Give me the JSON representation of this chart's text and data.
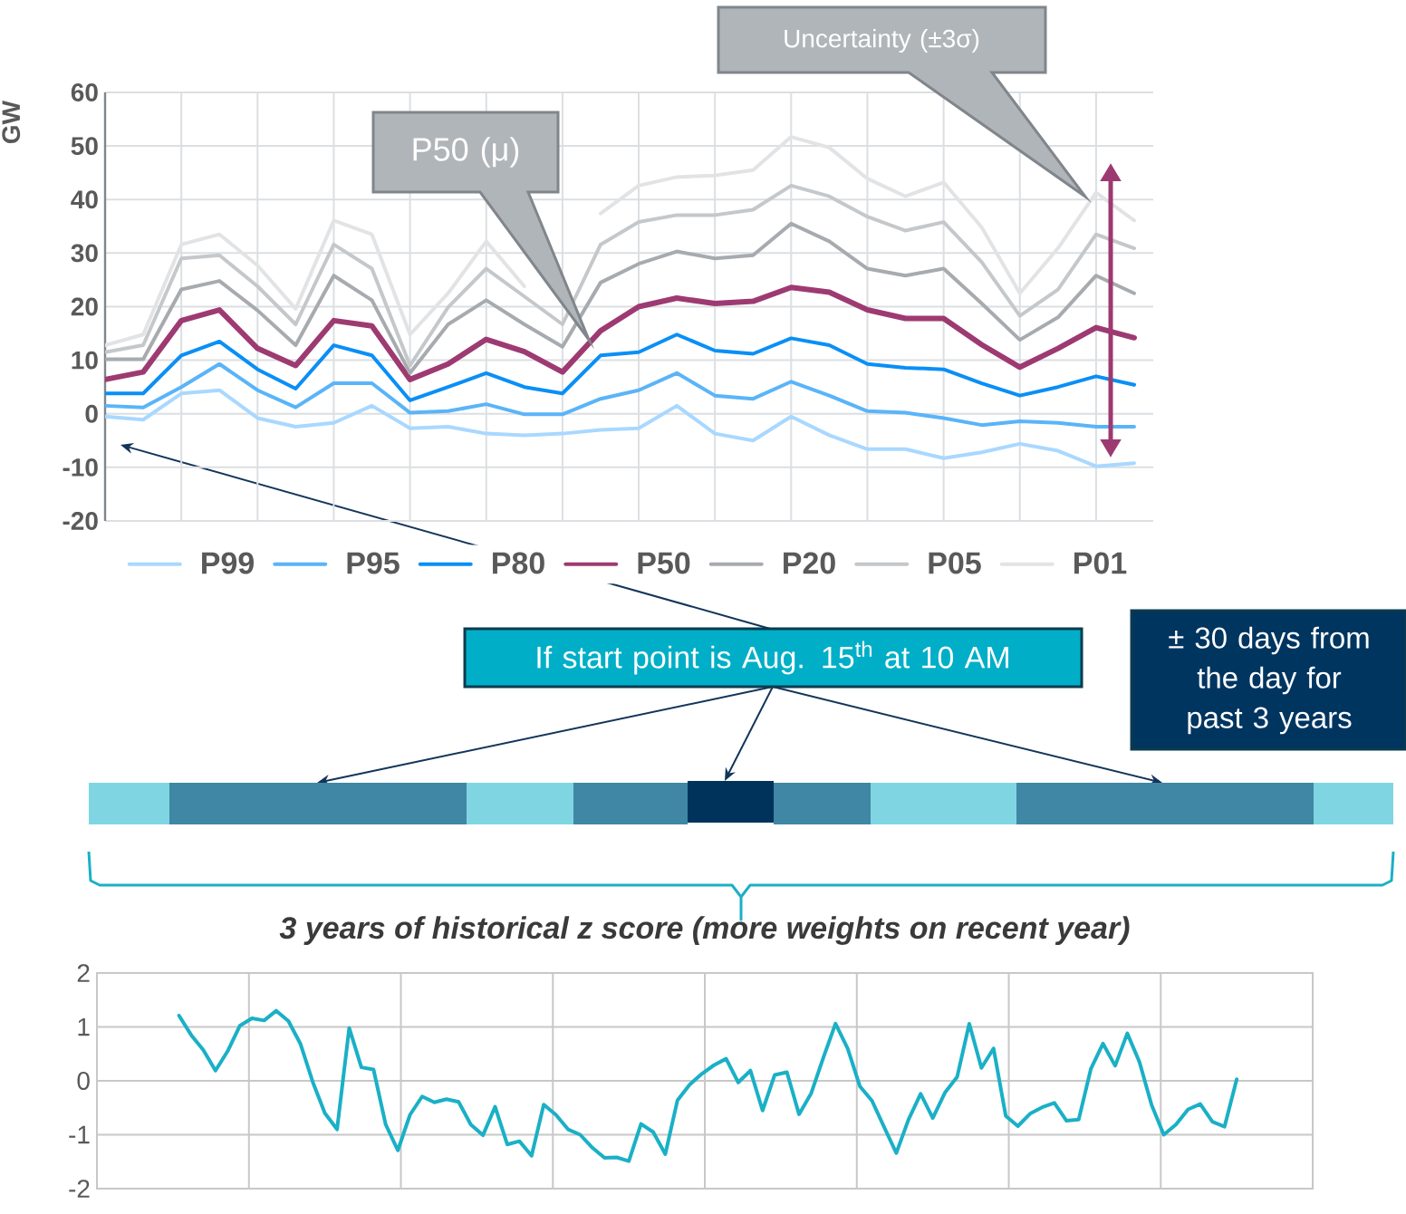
{
  "chart_data": [
    {
      "type": "line",
      "ylabel": "GW",
      "categories": [
        null,
        null,
        null,
        null,
        null,
        null,
        null,
        null,
        null,
        null,
        null,
        null,
        null,
        null,
        null,
        null,
        null,
        null,
        null,
        null,
        null,
        null,
        null,
        null,
        null,
        null,
        null,
        null
      ],
      "ylim": [
        -20,
        60
      ],
      "yticks": [
        -20,
        -10,
        0,
        10,
        20,
        30,
        40,
        50,
        60
      ],
      "tick_labels": "y",
      "grid": true,
      "legend": "bottom",
      "series": [
        {
          "name": "P99",
          "color": "#a9d8ff",
          "values": [
            -0.5,
            -1.1,
            3.8,
            4.4,
            -0.8,
            -2.4,
            -1.7,
            1.5,
            -2.7,
            -2.4,
            -3.7,
            -4,
            -3.7,
            -3,
            -2.7,
            1.5,
            -3.7,
            -5,
            -0.5,
            -4,
            -6.6,
            -6.6,
            -8.3,
            -7.2,
            -5.6,
            -6.9,
            -9.8,
            -9.2
          ]
        },
        {
          "name": "P95",
          "color": "#5ab4f8",
          "values": [
            1.5,
            1.2,
            5,
            9.3,
            4.4,
            1.2,
            5.7,
            5.7,
            0.2,
            0.5,
            1.8,
            -0.1,
            -0.1,
            2.8,
            4.4,
            7.6,
            3.4,
            2.8,
            6,
            3.4,
            0.5,
            0.2,
            -0.8,
            -2.1,
            -1.4,
            -1.7,
            -2.4,
            -2.4
          ]
        },
        {
          "name": "P80",
          "color": "#0a8ff5",
          "values": [
            3.8,
            3.8,
            10.9,
            13.5,
            8.3,
            4.7,
            12.8,
            10.9,
            2.5,
            5,
            7.6,
            5,
            3.8,
            10.9,
            11.5,
            14.8,
            11.8,
            11.2,
            14.1,
            12.8,
            9.3,
            8.6,
            8.3,
            5.7,
            3.4,
            5,
            7,
            5.4
          ]
        },
        {
          "name": "P50",
          "color": "#9e3a72",
          "values": [
            6.4,
            7.8,
            17.4,
            19.4,
            12.2,
            9,
            17.4,
            16.4,
            6.4,
            9.3,
            13.9,
            11.6,
            7.8,
            15.5,
            20,
            21.6,
            20.6,
            21,
            23.6,
            22.7,
            19.4,
            17.8,
            17.8,
            12.9,
            8.7,
            12.2,
            16.1,
            14.2
          ]
        },
        {
          "name": "P20",
          "color": "#a7abaf",
          "values": [
            10.2,
            10.2,
            23.2,
            24.8,
            19.3,
            12.8,
            25.8,
            21.2,
            7.6,
            16.7,
            21.2,
            16.7,
            12.5,
            24.5,
            28,
            30.3,
            29,
            29.6,
            35.5,
            32.2,
            27.1,
            25.8,
            27.1,
            20.6,
            13.8,
            18,
            25.8,
            22.5
          ]
        },
        {
          "name": "P05",
          "color": "#c5c8cb",
          "values": [
            11.5,
            12.8,
            29,
            29.6,
            23.8,
            16.7,
            31.6,
            27.1,
            9,
            19.9,
            27.1,
            21.9,
            16.7,
            31.6,
            35.8,
            37.1,
            37.1,
            38.1,
            42.6,
            40.6,
            36.8,
            34.2,
            35.8,
            28.3,
            18.3,
            23.2,
            33.5,
            30.9
          ]
        },
        {
          "name": "P01",
          "color": "#e2e3e5",
          "values": [
            12.8,
            14.8,
            31.6,
            33.5,
            27.7,
            19.6,
            36.1,
            33.5,
            14.8,
            22.5,
            32.2,
            23.8,
            null,
            37.4,
            42.6,
            44.2,
            44.5,
            45.5,
            51.7,
            49.7,
            43.9,
            40.6,
            43.2,
            34.8,
            22.5,
            30.9,
            41.3,
            36.1
          ]
        }
      ],
      "annotations": [
        "P50 (μ)",
        "Uncertainty (±3σ)",
        "If start point is Aug. 15$^{th}$ at 10 AM",
        "± 30 days from the day for past 3 years"
      ]
    },
    {
      "type": "line",
      "title": "3 years of historical z score (more weights on recent year)",
      "categories": [
        null,
        null,
        null,
        null,
        null,
        null,
        null,
        null,
        null,
        null,
        null,
        null,
        null,
        null,
        null,
        null,
        null,
        null,
        null,
        null,
        null,
        null,
        null,
        null,
        null,
        null,
        null,
        null,
        null,
        null,
        null,
        null,
        null,
        null,
        null,
        null,
        null,
        null,
        null,
        null,
        null,
        null,
        null,
        null,
        null,
        null,
        null,
        null,
        null,
        null,
        null,
        null,
        null,
        null,
        null,
        null,
        null,
        null,
        null,
        null,
        null,
        null,
        null,
        null,
        null,
        null,
        null,
        null,
        null,
        null,
        null,
        null,
        null,
        null,
        null,
        null,
        null,
        null,
        null,
        null,
        null,
        null,
        null,
        null,
        null,
        null,
        null,
        null
      ],
      "ylim": [
        -2,
        2
      ],
      "yticks": [
        -2,
        -1,
        0,
        1,
        2
      ],
      "tick_labels": "y",
      "grid": true,
      "series": [
        {
          "color": "#1ab0c6",
          "values": [
            1.21,
            0.85,
            0.57,
            0.19,
            0.55,
            1.02,
            1.16,
            1.12,
            1.3,
            1.11,
            0.68,
            -0.02,
            -0.6,
            -0.9,
            0.98,
            0.25,
            0.21,
            -0.81,
            -1.29,
            -0.63,
            -0.29,
            -0.4,
            -0.34,
            -0.39,
            -0.81,
            -1.01,
            -0.48,
            -1.18,
            -1.12,
            -1.39,
            -0.44,
            -0.63,
            -0.9,
            -1.0,
            -1.24,
            -1.43,
            -1.42,
            -1.49,
            -0.8,
            -0.95,
            -1.36,
            -0.36,
            -0.07,
            0.13,
            0.29,
            0.41,
            -0.03,
            0.19,
            -0.55,
            0.11,
            0.16,
            -0.62,
            -0.23,
            0.43,
            1.06,
            0.6,
            -0.1,
            -0.37,
            -0.86,
            -1.34,
            -0.72,
            -0.24,
            -0.69,
            -0.22,
            0.07,
            1.06,
            0.24,
            0.6,
            -0.65,
            -0.84,
            -0.61,
            -0.49,
            -0.41,
            -0.74,
            -0.72,
            0.22,
            0.69,
            0.28,
            0.88,
            0.35,
            -0.45,
            -1.0,
            -0.81,
            -0.53,
            -0.43,
            -0.76,
            -0.85,
            0.03
          ]
        }
      ]
    }
  ]
}
